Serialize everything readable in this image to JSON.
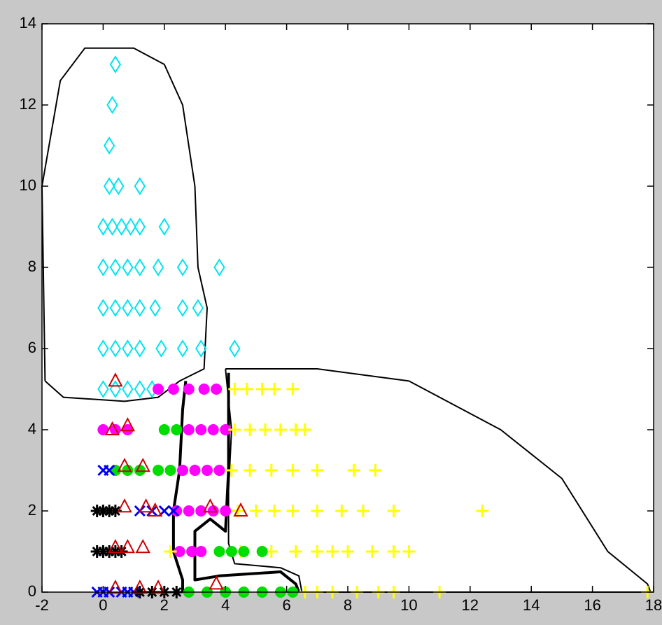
{
  "chart_data": {
    "type": "scatter",
    "xlim": [
      -2,
      18
    ],
    "ylim": [
      0,
      14
    ],
    "xticks": [
      -2,
      0,
      2,
      4,
      6,
      8,
      10,
      12,
      14,
      16,
      18
    ],
    "yticks": [
      0,
      2,
      4,
      6,
      8,
      10,
      12,
      14
    ],
    "series": [
      {
        "color": "#00e5ee",
        "marker": "diamond",
        "x": [
          0.4,
          0.3,
          0.2,
          0.2,
          0.5,
          1.2,
          0,
          0.3,
          0.6,
          0.9,
          1.2,
          2,
          0,
          0.4,
          0.8,
          1.2,
          1.8,
          2.6,
          3.8,
          0,
          0.4,
          0.8,
          1.2,
          1.7,
          2.6,
          3.1,
          0,
          0.4,
          0.8,
          1.2,
          1.9,
          2.6,
          3.2,
          4.3,
          0,
          0.4,
          0.8,
          1.2,
          1.6
        ],
        "y": [
          13,
          12,
          11,
          10,
          10,
          10,
          9,
          9,
          9,
          9,
          9,
          9,
          8,
          8,
          8,
          8,
          8,
          8,
          8,
          7,
          7,
          7,
          7,
          7,
          7,
          7,
          6,
          6,
          6,
          6,
          6,
          6,
          6,
          6,
          5,
          5,
          5,
          5,
          5
        ]
      },
      {
        "color": "#ff00ff",
        "marker": "dot",
        "x": [
          1.8,
          2.3,
          2.8,
          3.3,
          3.7,
          0,
          0.4,
          0.8,
          2.8,
          3.2,
          3.6,
          4.0,
          2.6,
          3.0,
          3.4,
          3.8,
          2.4,
          2.8,
          3.2,
          3.6,
          4.0,
          2.5,
          2.9,
          3.2
        ],
        "y": [
          5,
          5,
          5,
          5,
          5,
          4,
          4,
          4,
          4,
          4,
          4,
          4,
          3,
          3,
          3,
          3,
          2,
          2,
          2,
          2,
          2,
          1,
          1,
          1
        ]
      },
      {
        "color": "#ffff00",
        "marker": "plus",
        "x": [
          4.3,
          4.7,
          5.2,
          5.6,
          6.2,
          4.3,
          4.8,
          5.3,
          5.8,
          6.3,
          6.6,
          4.2,
          4.8,
          5.5,
          6.2,
          7,
          8.2,
          8.9,
          4.4,
          5,
          5.6,
          6.2,
          7,
          7.8,
          8.5,
          9.5,
          12.4,
          2.2,
          4.5,
          5.5,
          6.3,
          7,
          7.5,
          8,
          8.8,
          9.5,
          10,
          6.6,
          7,
          7.5,
          8.3,
          9,
          9.5,
          11,
          17.8
        ],
        "y": [
          5,
          5,
          5,
          5,
          5,
          4,
          4,
          4,
          4,
          4,
          4,
          3,
          3,
          3,
          3,
          3,
          3,
          3,
          2,
          2,
          2,
          2,
          2,
          2,
          2,
          2,
          2,
          1,
          1,
          1,
          1,
          1,
          1,
          1,
          1,
          1,
          1,
          0,
          0,
          0,
          0,
          0,
          0,
          0,
          0
        ]
      },
      {
        "color": "#00dd00",
        "marker": "dot",
        "x": [
          2.0,
          2.4,
          0.4,
          0.8,
          1.2,
          1.8,
          2.2,
          3.8,
          4.2,
          4.6,
          5.2,
          2.8,
          3.4,
          4,
          4.6,
          5.2,
          5.8,
          6.2
        ],
        "y": [
          4,
          4,
          3,
          3,
          3,
          3,
          3,
          1,
          1,
          1,
          1,
          0,
          0,
          0,
          0,
          0,
          0,
          0
        ]
      },
      {
        "color": "#0000ee",
        "marker": "x",
        "x": [
          0,
          0.2,
          1.2,
          1.6,
          2,
          2.3,
          -0.2,
          0,
          0.2,
          0.6,
          0.8,
          1.0
        ],
        "y": [
          3,
          3,
          2,
          2,
          2,
          2,
          0,
          0,
          0,
          0,
          0,
          0
        ]
      },
      {
        "color": "#000000",
        "marker": "star",
        "x": [
          -0.2,
          0,
          0.2,
          0.4,
          -0.2,
          0,
          0.2,
          0.4,
          0.6,
          1.2,
          1.6,
          2,
          2.4
        ],
        "y": [
          2,
          2,
          2,
          2,
          1,
          1,
          1,
          1,
          1,
          0,
          0,
          0,
          0
        ]
      },
      {
        "color": "#cc0000",
        "marker": "triangle",
        "x": [
          0.4,
          0.3,
          0.8,
          0.7,
          1.3,
          0.7,
          1.4,
          1.7,
          3.5,
          4.5,
          0.4,
          0.8,
          1.3,
          0.4,
          1.2,
          1.8,
          3.7
        ],
        "y": [
          5.2,
          4,
          4.1,
          3.1,
          3.1,
          2.1,
          2.1,
          2,
          2.1,
          2,
          1.1,
          1.1,
          1.1,
          0.1,
          0.1,
          0.1,
          0.2
        ]
      }
    ],
    "boundaries": [
      {
        "color": "#000000",
        "width": 2,
        "x": [
          -1.9,
          -2,
          -1.4,
          -0.6,
          1,
          2,
          2.6,
          3.0,
          3.1,
          3.4,
          3.3,
          2.5,
          1.8,
          0.7,
          -1.3,
          -1.9
        ],
        "y": [
          5.2,
          10,
          12.6,
          13.4,
          13.4,
          13,
          12,
          10,
          8,
          7,
          5.5,
          5.2,
          4.8,
          4.7,
          4.8,
          5.2
        ]
      },
      {
        "color": "#000000",
        "width": 2,
        "x": [
          4,
          7,
          10,
          13,
          15,
          16.5,
          17.8,
          17.9,
          6.5,
          6.4,
          5.8,
          4.3,
          4.1,
          4.1,
          4.2,
          4
        ],
        "y": [
          5.5,
          5.5,
          5.2,
          4,
          2.8,
          1,
          0.2,
          0,
          0,
          0.4,
          0.6,
          0.7,
          1.2,
          2.5,
          4,
          5.5
        ]
      },
      {
        "color": "#000000",
        "width": 4,
        "x": [
          2.7,
          2.6,
          2.5,
          2.3,
          2.3,
          2.6,
          2.6
        ],
        "y": [
          5.2,
          4.5,
          3,
          2,
          1,
          0.3,
          0
        ]
      },
      {
        "color": "#000000",
        "width": 4,
        "x": [
          4.1,
          4.1,
          4,
          3.5,
          3.0,
          3.0,
          3.8,
          5.8,
          6.3,
          6.4
        ],
        "y": [
          5.4,
          3,
          1.5,
          1.8,
          1.5,
          0.3,
          0.4,
          0.5,
          0.2,
          0
        ]
      }
    ]
  }
}
